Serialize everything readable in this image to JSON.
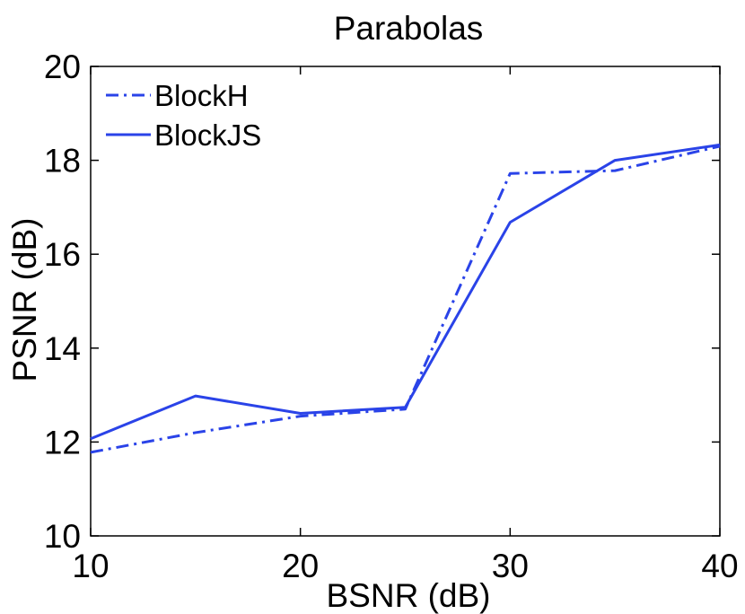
{
  "chart_data": {
    "type": "line",
    "title": "Parabolas",
    "xlabel": "BSNR (dB)",
    "ylabel": "PSNR (dB)",
    "x": [
      10,
      15,
      20,
      25,
      30,
      35,
      40
    ],
    "xlim": [
      10,
      40
    ],
    "ylim": [
      10,
      20
    ],
    "xticks": [
      10,
      20,
      30,
      40
    ],
    "yticks": [
      10,
      12,
      14,
      16,
      18,
      20
    ],
    "grid": false,
    "legend_position": "top-left",
    "series": [
      {
        "name": "BlockH",
        "style": "dash-dot",
        "color": "#2a43e8",
        "values": [
          11.78,
          12.2,
          12.55,
          12.7,
          17.72,
          17.78,
          18.3
        ]
      },
      {
        "name": "BlockJS",
        "style": "solid",
        "color": "#2a43e8",
        "values": [
          12.07,
          12.98,
          12.61,
          12.74,
          16.68,
          18.0,
          18.33
        ]
      }
    ]
  }
}
